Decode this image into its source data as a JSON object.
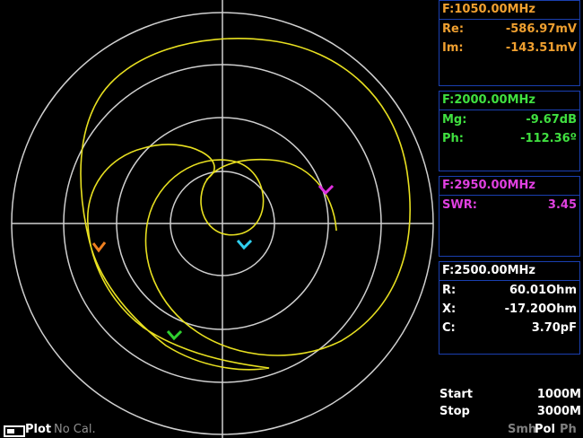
{
  "panels": [
    {
      "header": "F:1050.00MHz",
      "rows": [
        [
          "Re:",
          "-586.97mV"
        ],
        [
          "Im:",
          "-143.51mV"
        ]
      ]
    },
    {
      "header": "F:2000.00MHz",
      "rows": [
        [
          "Mg:",
          "-9.67dB"
        ],
        [
          "Ph:",
          "-112.36º"
        ]
      ]
    },
    {
      "header": "F:2950.00MHz",
      "rows": [
        [
          "SWR:",
          "3.45"
        ]
      ]
    },
    {
      "header": "F:2500.00MHz",
      "rows": [
        [
          "R:",
          "60.01Ohm"
        ],
        [
          "X:",
          "-17.20Ohm"
        ],
        [
          "C:",
          "3.70pF"
        ]
      ]
    }
  ],
  "sweep": [
    [
      "Start",
      "1000M"
    ],
    [
      "Stop",
      "3000M"
    ]
  ],
  "status": {
    "mode": "Plot",
    "cal": "No Cal.",
    "views": [
      "Smh",
      "Pol",
      "Ph"
    ]
  }
}
